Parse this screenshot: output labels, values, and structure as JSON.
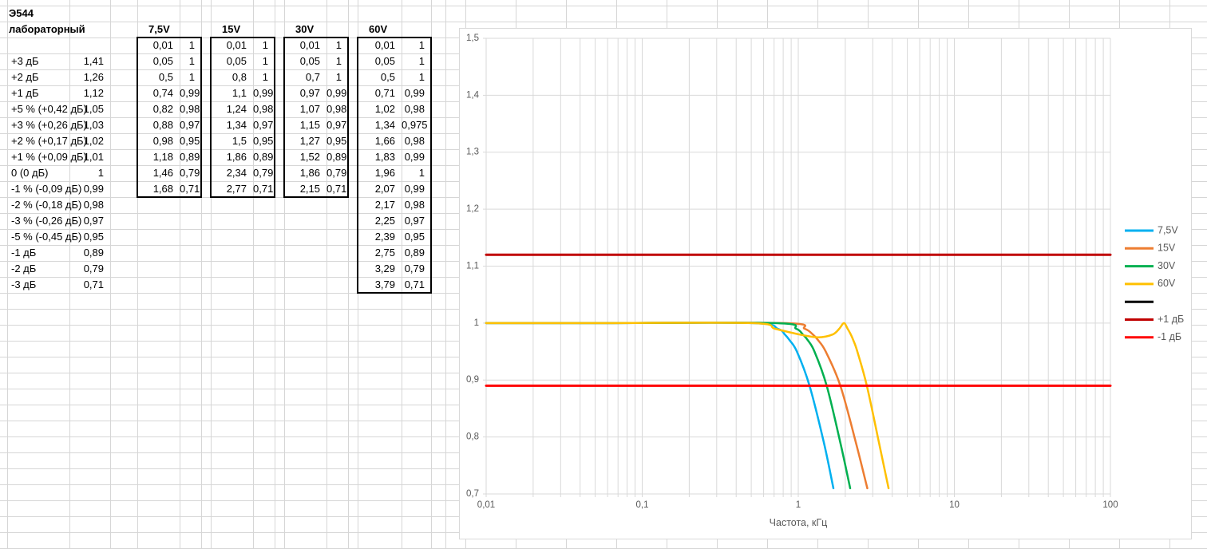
{
  "sheet": {
    "title": "Э544",
    "subtitle": "лабораторный",
    "reference_rows": [
      {
        "label": "+3 дБ",
        "value": "1,41"
      },
      {
        "label": "+2 дБ",
        "value": "1,26"
      },
      {
        "label": "+1 дБ",
        "value": "1,12"
      },
      {
        "label": "+5 % (+0,42 дБ)",
        "value": "1,05"
      },
      {
        "label": "+3 % (+0,26 дБ)",
        "value": "1,03"
      },
      {
        "label": "+2 % (+0,17 дБ)",
        "value": "1,02"
      },
      {
        "label": "+1 % (+0,09 дБ)",
        "value": "1,01"
      },
      {
        "label": "0 (0 дБ)",
        "value": "1"
      },
      {
        "label": "-1 % (-0,09 дБ)",
        "value": "0,99"
      },
      {
        "label": "-2 % (-0,18 дБ)",
        "value": "0,98"
      },
      {
        "label": "-3 % (-0,26 дБ)",
        "value": "0,97"
      },
      {
        "label": "-5 % (-0,45 дБ)",
        "value": "0,95"
      },
      {
        "label": "-1 дБ",
        "value": "0,89"
      },
      {
        "label": "-2 дБ",
        "value": "0,79"
      },
      {
        "label": "-3 дБ",
        "value": "0,71"
      }
    ],
    "voltage_tables": [
      {
        "title": "7,5V",
        "rows": [
          [
            "0,01",
            "1"
          ],
          [
            "0,05",
            "1"
          ],
          [
            "0,5",
            "1"
          ],
          [
            "0,74",
            "0,99"
          ],
          [
            "0,82",
            "0,98"
          ],
          [
            "0,88",
            "0,97"
          ],
          [
            "0,98",
            "0,95"
          ],
          [
            "1,18",
            "0,89"
          ],
          [
            "1,46",
            "0,79"
          ],
          [
            "1,68",
            "0,71"
          ]
        ]
      },
      {
        "title": "15V",
        "rows": [
          [
            "0,01",
            "1"
          ],
          [
            "0,05",
            "1"
          ],
          [
            "0,8",
            "1"
          ],
          [
            "1,1",
            "0,99"
          ],
          [
            "1,24",
            "0,98"
          ],
          [
            "1,34",
            "0,97"
          ],
          [
            "1,5",
            "0,95"
          ],
          [
            "1,86",
            "0,89"
          ],
          [
            "2,34",
            "0,79"
          ],
          [
            "2,77",
            "0,71"
          ]
        ]
      },
      {
        "title": "30V",
        "rows": [
          [
            "0,01",
            "1"
          ],
          [
            "0,05",
            "1"
          ],
          [
            "0,7",
            "1"
          ],
          [
            "0,97",
            "0,99"
          ],
          [
            "1,07",
            "0,98"
          ],
          [
            "1,15",
            "0,97"
          ],
          [
            "1,27",
            "0,95"
          ],
          [
            "1,52",
            "0,89"
          ],
          [
            "1,86",
            "0,79"
          ],
          [
            "2,15",
            "0,71"
          ]
        ]
      },
      {
        "title": "60V",
        "rows": [
          [
            "0,01",
            "1"
          ],
          [
            "0,05",
            "1"
          ],
          [
            "0,5",
            "1"
          ],
          [
            "0,71",
            "0,99"
          ],
          [
            "1,02",
            "0,98"
          ],
          [
            "1,34",
            "0,975"
          ],
          [
            "1,66",
            "0,98"
          ],
          [
            "1,83",
            "0,99"
          ],
          [
            "1,96",
            "1"
          ],
          [
            "2,07",
            "0,99"
          ],
          [
            "2,17",
            "0,98"
          ],
          [
            "2,25",
            "0,97"
          ],
          [
            "2,39",
            "0,95"
          ],
          [
            "2,75",
            "0,89"
          ],
          [
            "3,29",
            "0,79"
          ],
          [
            "3,79",
            "0,71"
          ]
        ]
      }
    ]
  },
  "chart_data": {
    "type": "line",
    "x_scale": "log",
    "title": "",
    "xlabel": "Частота, кГц",
    "ylabel": "",
    "xlim": [
      0.01,
      100
    ],
    "ylim": [
      0.7,
      1.5
    ],
    "x_ticks": [
      "0,01",
      "0,1",
      "1",
      "10",
      "100"
    ],
    "y_ticks": [
      "0,7",
      "0,8",
      "0,9",
      "1",
      "1,1",
      "1,2",
      "1,3",
      "1,4",
      "1,5"
    ],
    "grid": "major-and-log-minor",
    "legend_position": "right",
    "colors": {
      "grid": "#d9d9d9",
      "axis_text": "#595959",
      "plus1db": "#c00000",
      "minus1db": "#ff0000"
    },
    "series": [
      {
        "name": "7,5V",
        "color": "#00b0f0",
        "width": 2.5,
        "smooth": true,
        "points": [
          [
            0.01,
            1
          ],
          [
            0.05,
            1
          ],
          [
            0.5,
            1
          ],
          [
            0.74,
            0.99
          ],
          [
            0.82,
            0.98
          ],
          [
            0.88,
            0.97
          ],
          [
            0.98,
            0.95
          ],
          [
            1.18,
            0.89
          ],
          [
            1.46,
            0.79
          ],
          [
            1.68,
            0.71
          ]
        ]
      },
      {
        "name": "15V",
        "color": "#ed7d31",
        "width": 2.5,
        "smooth": true,
        "points": [
          [
            0.01,
            1
          ],
          [
            0.05,
            1
          ],
          [
            0.8,
            1
          ],
          [
            1.1,
            0.99
          ],
          [
            1.24,
            0.98
          ],
          [
            1.34,
            0.97
          ],
          [
            1.5,
            0.95
          ],
          [
            1.86,
            0.89
          ],
          [
            2.34,
            0.79
          ],
          [
            2.77,
            0.71
          ]
        ]
      },
      {
        "name": "30V",
        "color": "#00b050",
        "width": 2.5,
        "smooth": true,
        "points": [
          [
            0.01,
            1
          ],
          [
            0.05,
            1
          ],
          [
            0.7,
            1
          ],
          [
            0.97,
            0.99
          ],
          [
            1.07,
            0.98
          ],
          [
            1.15,
            0.97
          ],
          [
            1.27,
            0.95
          ],
          [
            1.52,
            0.89
          ],
          [
            1.86,
            0.79
          ],
          [
            2.15,
            0.71
          ]
        ]
      },
      {
        "name": "60V",
        "color": "#ffc000",
        "width": 2.5,
        "smooth": true,
        "points": [
          [
            0.01,
            1
          ],
          [
            0.05,
            1
          ],
          [
            0.5,
            1
          ],
          [
            0.71,
            0.99
          ],
          [
            1.02,
            0.98
          ],
          [
            1.34,
            0.975
          ],
          [
            1.66,
            0.98
          ],
          [
            1.83,
            0.99
          ],
          [
            1.96,
            1
          ],
          [
            2.07,
            0.99
          ],
          [
            2.17,
            0.98
          ],
          [
            2.25,
            0.97
          ],
          [
            2.39,
            0.95
          ],
          [
            2.75,
            0.89
          ],
          [
            3.29,
            0.79
          ],
          [
            3.79,
            0.71
          ]
        ]
      },
      {
        "name": "",
        "color": "#000000",
        "width": 3,
        "smooth": false,
        "points": []
      },
      {
        "name": "+1 дБ",
        "color": "#c00000",
        "width": 3,
        "smooth": false,
        "points": [
          [
            0.01,
            1.12
          ],
          [
            100,
            1.12
          ]
        ]
      },
      {
        "name": "-1 дБ",
        "color": "#ff0000",
        "width": 3,
        "smooth": false,
        "points": [
          [
            0.01,
            0.89
          ],
          [
            100,
            0.89
          ]
        ]
      }
    ]
  }
}
